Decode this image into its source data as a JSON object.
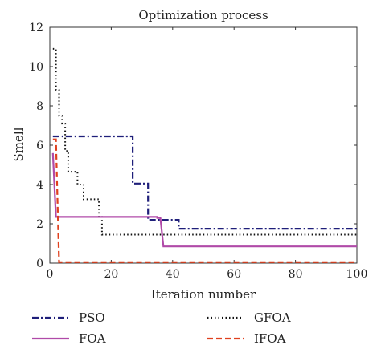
{
  "chart_data": {
    "type": "line",
    "title": "Optimization process",
    "xlabel": "Iteration number",
    "ylabel": "Smell",
    "xlim": [
      0,
      100
    ],
    "ylim": [
      0,
      12
    ],
    "xticks": [
      "0",
      "20",
      "40",
      "60",
      "80",
      "100"
    ],
    "yticks": [
      "0",
      "2",
      "4",
      "6",
      "8",
      "10",
      "12"
    ],
    "grid": false,
    "legend_position": "bottom",
    "series": [
      {
        "name": "PSO",
        "color": "#1f1f7a",
        "dash": "dashdot",
        "points": [
          [
            1,
            6.45
          ],
          [
            27,
            6.45
          ],
          [
            27,
            4.05
          ],
          [
            32,
            4.05
          ],
          [
            32,
            2.2
          ],
          [
            42,
            2.2
          ],
          [
            42,
            1.75
          ],
          [
            100,
            1.75
          ]
        ]
      },
      {
        "name": "GFOA",
        "color": "#111111",
        "dash": "dotted",
        "points": [
          [
            1,
            10.9
          ],
          [
            2,
            10.9
          ],
          [
            2,
            8.8
          ],
          [
            3,
            8.8
          ],
          [
            3,
            7.5
          ],
          [
            4,
            7.5
          ],
          [
            4,
            7.1
          ],
          [
            5,
            7.1
          ],
          [
            5,
            5.7
          ],
          [
            6,
            5.7
          ],
          [
            6,
            4.65
          ],
          [
            9,
            4.65
          ],
          [
            9,
            4.0
          ],
          [
            11,
            4.0
          ],
          [
            11,
            3.25
          ],
          [
            16,
            3.25
          ],
          [
            16,
            2.35
          ],
          [
            17,
            2.35
          ],
          [
            17,
            1.45
          ],
          [
            100,
            1.45
          ]
        ]
      },
      {
        "name": "FOA",
        "color": "#b04aa8",
        "dash": "solid",
        "points": [
          [
            1,
            5.6
          ],
          [
            2,
            2.35
          ],
          [
            35,
            2.35
          ],
          [
            35,
            2.3
          ],
          [
            36,
            2.3
          ],
          [
            37,
            0.85
          ],
          [
            100,
            0.85
          ]
        ]
      },
      {
        "name": "IFOA",
        "color": "#e0401e",
        "dash": "dashed",
        "points": [
          [
            1,
            6.3
          ],
          [
            2,
            6.3
          ],
          [
            3,
            0.05
          ],
          [
            100,
            0.05
          ]
        ]
      }
    ]
  },
  "legend_order": [
    "PSO",
    "GFOA",
    "FOA",
    "IFOA"
  ]
}
